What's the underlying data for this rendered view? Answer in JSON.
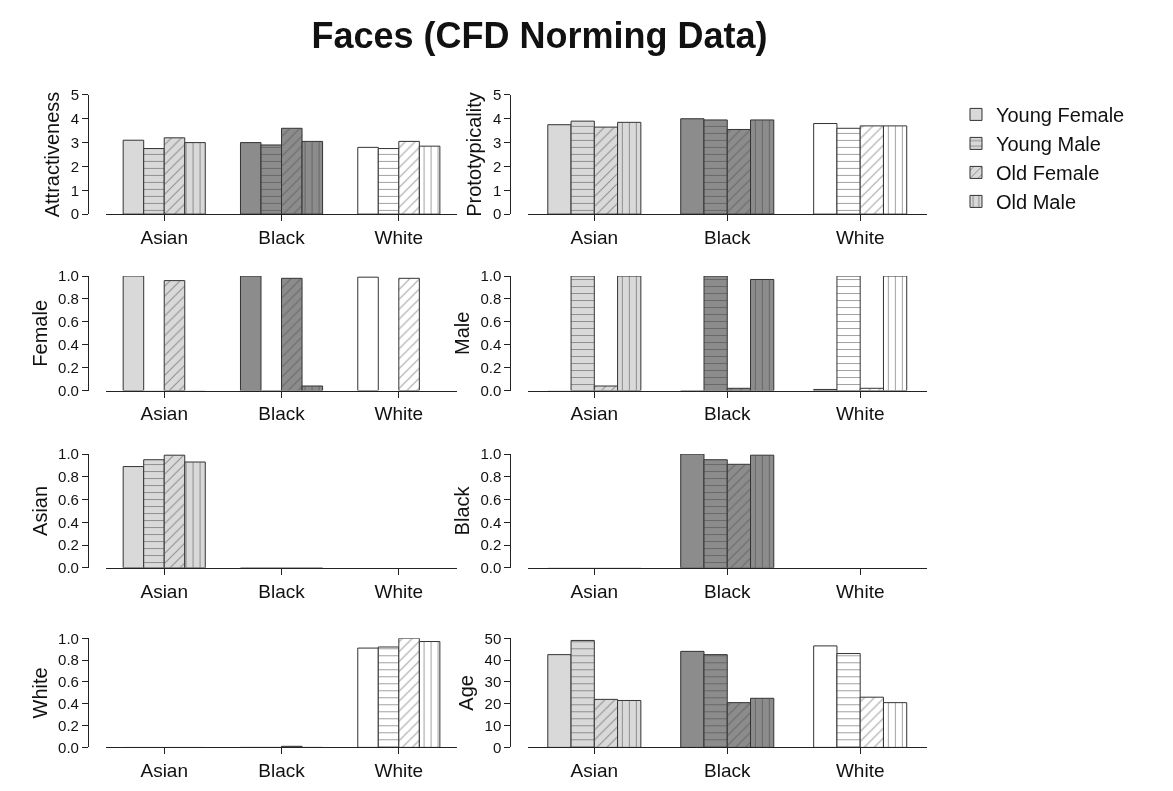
{
  "chart_data": [
    {
      "type": "bar",
      "title": "Faces (CFD Norming Data)",
      "ylabel": "Attractiveness",
      "categories": [
        "Asian",
        "Black",
        "White"
      ],
      "ylim": [
        0,
        5
      ],
      "yticks": [
        0,
        1,
        2,
        3,
        4,
        5
      ],
      "series": [
        {
          "colors": [
            "#d9d9d9",
            "#8c8c8c",
            "#ffffff"
          ],
          "values": [
            3.1,
            3.0,
            2.8
          ]
        },
        {
          "colors": [
            "#d9d9d9",
            "#8c8c8c",
            "#ffffff"
          ],
          "values": [
            2.75,
            2.9,
            2.75
          ]
        },
        {
          "colors": [
            "#d9d9d9",
            "#8c8c8c",
            "#ffffff"
          ],
          "values": [
            3.2,
            3.6,
            3.05
          ]
        },
        {
          "colors": [
            "#d9d9d9",
            "#8c8c8c",
            "#ffffff"
          ],
          "values": [
            3.0,
            3.05,
            2.85
          ]
        }
      ]
    },
    {
      "type": "bar",
      "ylabel": "Prototypicality",
      "categories": [
        "Asian",
        "Black",
        "White"
      ],
      "ylim": [
        0,
        5
      ],
      "yticks": [
        0,
        1,
        2,
        3,
        4,
        5
      ],
      "legend": "right",
      "series": [
        {
          "name": "Young Female",
          "colors": [
            "#d9d9d9",
            "#8c8c8c",
            "#ffffff"
          ],
          "values": [
            3.75,
            4.0,
            3.8
          ]
        },
        {
          "name": "Young Male",
          "colors": [
            "#d9d9d9",
            "#8c8c8c",
            "#ffffff"
          ],
          "values": [
            3.9,
            3.95,
            3.6
          ]
        },
        {
          "name": "Old Female",
          "colors": [
            "#d9d9d9",
            "#8c8c8c",
            "#ffffff"
          ],
          "values": [
            3.65,
            3.55,
            3.7
          ]
        },
        {
          "name": "Old Male",
          "colors": [
            "#d9d9d9",
            "#8c8c8c",
            "#ffffff"
          ],
          "values": [
            3.85,
            3.95,
            3.7
          ]
        }
      ]
    },
    {
      "type": "bar",
      "ylabel": "Female",
      "categories": [
        "Asian",
        "Black",
        "White"
      ],
      "ylim": [
        0,
        1
      ],
      "yticks": [
        {
          "value": 0,
          "label": "0.0"
        },
        {
          "value": 0.2,
          "label": "0.2"
        },
        {
          "value": 0.4,
          "label": "0.4"
        },
        {
          "value": 0.6,
          "label": "0.6"
        },
        {
          "value": 0.8,
          "label": "0.8"
        },
        {
          "value": 1,
          "label": "1.0"
        }
      ],
      "series": [
        {
          "colors": [
            "#d9d9d9",
            "#8c8c8c",
            "#ffffff"
          ],
          "values": [
            1.0,
            1.0,
            0.99
          ]
        },
        {
          "colors": [
            "#d9d9d9",
            "#8c8c8c",
            "#ffffff"
          ],
          "values": [
            0.0,
            0.0,
            0.0
          ]
        },
        {
          "colors": [
            "#d9d9d9",
            "#8c8c8c",
            "#ffffff"
          ],
          "values": [
            0.96,
            0.98,
            0.98
          ]
        },
        {
          "colors": [
            "#d9d9d9",
            "#8c8c8c",
            "#ffffff"
          ],
          "values": [
            0.0,
            0.04,
            0.0
          ]
        }
      ]
    },
    {
      "type": "bar",
      "ylabel": "Male",
      "categories": [
        "Asian",
        "Black",
        "White"
      ],
      "ylim": [
        0,
        1
      ],
      "yticks": [
        {
          "value": 0,
          "label": "0.0"
        },
        {
          "value": 0.2,
          "label": "0.2"
        },
        {
          "value": 0.4,
          "label": "0.4"
        },
        {
          "value": 0.6,
          "label": "0.6"
        },
        {
          "value": 0.8,
          "label": "0.8"
        },
        {
          "value": 1,
          "label": "1.0"
        }
      ],
      "series": [
        {
          "colors": [
            "#d9d9d9",
            "#8c8c8c",
            "#ffffff"
          ],
          "values": [
            0.0,
            0.0,
            0.01
          ]
        },
        {
          "colors": [
            "#d9d9d9",
            "#8c8c8c",
            "#ffffff"
          ],
          "values": [
            1.0,
            1.0,
            1.0
          ]
        },
        {
          "colors": [
            "#d9d9d9",
            "#8c8c8c",
            "#ffffff"
          ],
          "values": [
            0.04,
            0.02,
            0.02
          ]
        },
        {
          "colors": [
            "#d9d9d9",
            "#8c8c8c",
            "#ffffff"
          ],
          "values": [
            1.0,
            0.97,
            1.0
          ]
        }
      ]
    },
    {
      "type": "bar",
      "ylabel": "Asian",
      "categories": [
        "Asian",
        "Black",
        "White"
      ],
      "ylim": [
        0,
        1
      ],
      "yticks": [
        {
          "value": 0,
          "label": "0.0"
        },
        {
          "value": 0.2,
          "label": "0.2"
        },
        {
          "value": 0.4,
          "label": "0.4"
        },
        {
          "value": 0.6,
          "label": "0.6"
        },
        {
          "value": 0.8,
          "label": "0.8"
        },
        {
          "value": 1,
          "label": "1.0"
        }
      ],
      "series": [
        {
          "colors": [
            "#d9d9d9",
            "#8c8c8c",
            "#ffffff"
          ],
          "values": [
            0.89,
            0.0,
            0.0
          ]
        },
        {
          "colors": [
            "#d9d9d9",
            "#8c8c8c",
            "#ffffff"
          ],
          "values": [
            0.95,
            0.0,
            0.0
          ]
        },
        {
          "colors": [
            "#d9d9d9",
            "#8c8c8c",
            "#ffffff"
          ],
          "values": [
            0.99,
            0.0,
            0.0
          ]
        },
        {
          "colors": [
            "#d9d9d9",
            "#8c8c8c",
            "#ffffff"
          ],
          "values": [
            0.93,
            0.0,
            0.0
          ]
        }
      ]
    },
    {
      "type": "bar",
      "ylabel": "Black",
      "categories": [
        "Asian",
        "Black",
        "White"
      ],
      "ylim": [
        0,
        1
      ],
      "yticks": [
        {
          "value": 0,
          "label": "0.0"
        },
        {
          "value": 0.2,
          "label": "0.2"
        },
        {
          "value": 0.4,
          "label": "0.4"
        },
        {
          "value": 0.6,
          "label": "0.6"
        },
        {
          "value": 0.8,
          "label": "0.8"
        },
        {
          "value": 1,
          "label": "1.0"
        }
      ],
      "series": [
        {
          "colors": [
            "#d9d9d9",
            "#8c8c8c",
            "#ffffff"
          ],
          "values": [
            0.0,
            1.0,
            0.0
          ]
        },
        {
          "colors": [
            "#d9d9d9",
            "#8c8c8c",
            "#ffffff"
          ],
          "values": [
            0.0,
            0.95,
            0.0
          ]
        },
        {
          "colors": [
            "#d9d9d9",
            "#8c8c8c",
            "#ffffff"
          ],
          "values": [
            0.0,
            0.91,
            0.0
          ]
        },
        {
          "colors": [
            "#d9d9d9",
            "#8c8c8c",
            "#ffffff"
          ],
          "values": [
            0.0,
            0.99,
            0.0
          ]
        }
      ]
    },
    {
      "type": "bar",
      "ylabel": "White",
      "categories": [
        "Asian",
        "Black",
        "White"
      ],
      "ylim": [
        0,
        1
      ],
      "yticks": [
        {
          "value": 0,
          "label": "0.0"
        },
        {
          "value": 0.2,
          "label": "0.2"
        },
        {
          "value": 0.4,
          "label": "0.4"
        },
        {
          "value": 0.6,
          "label": "0.6"
        },
        {
          "value": 0.8,
          "label": "0.8"
        },
        {
          "value": 1,
          "label": "1.0"
        }
      ],
      "series": [
        {
          "colors": [
            "#d9d9d9",
            "#8c8c8c",
            "#ffffff"
          ],
          "values": [
            0.0,
            0.0,
            0.91
          ]
        },
        {
          "colors": [
            "#d9d9d9",
            "#8c8c8c",
            "#ffffff"
          ],
          "values": [
            0.0,
            0.0,
            0.92
          ]
        },
        {
          "colors": [
            "#d9d9d9",
            "#8c8c8c",
            "#ffffff"
          ],
          "values": [
            0.0,
            0.01,
            1.0
          ]
        },
        {
          "colors": [
            "#d9d9d9",
            "#8c8c8c",
            "#ffffff"
          ],
          "values": [
            0.0,
            0.0,
            0.97
          ]
        }
      ]
    },
    {
      "type": "bar",
      "ylabel": "Age",
      "categories": [
        "Asian",
        "Black",
        "White"
      ],
      "ylim": [
        0,
        50
      ],
      "yticks": [
        0,
        10,
        20,
        30,
        40,
        50
      ],
      "series": [
        {
          "colors": [
            "#d9d9d9",
            "#8c8c8c",
            "#ffffff"
          ],
          "values": [
            42.5,
            44,
            46.5
          ]
        },
        {
          "colors": [
            "#d9d9d9",
            "#8c8c8c",
            "#ffffff"
          ],
          "values": [
            49,
            42.5,
            43
          ]
        },
        {
          "colors": [
            "#d9d9d9",
            "#8c8c8c",
            "#ffffff"
          ],
          "values": [
            22,
            20.5,
            23
          ]
        },
        {
          "colors": [
            "#d9d9d9",
            "#8c8c8c",
            "#ffffff"
          ],
          "values": [
            21.5,
            22.5,
            20.5
          ]
        }
      ]
    }
  ]
}
